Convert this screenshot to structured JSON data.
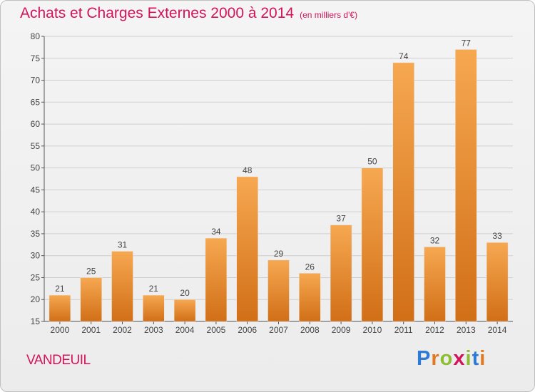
{
  "header": {
    "title": "Achats et Charges Externes 2000 à 2014",
    "unit": "(en milliers d'€)"
  },
  "commune": "VANDEUIL",
  "logo": {
    "text": "Proxiti",
    "letter_colors": [
      "#2e7bd6",
      "#e07a22",
      "#8bbf2f",
      "#d4145a",
      "#8bbf2f",
      "#2e7bd6",
      "#e07a22"
    ]
  },
  "colors": {
    "title": "#d4145a",
    "bar_light": "#f6a851",
    "bar_dark": "#d16f17",
    "grid": "#cfcfcf"
  },
  "chart_data": {
    "type": "bar",
    "title": "Achats et Charges Externes 2000 à 2014",
    "categories": [
      "2000",
      "2001",
      "2002",
      "2003",
      "2004",
      "2005",
      "2006",
      "2007",
      "2008",
      "2009",
      "2010",
      "2011",
      "2012",
      "2013",
      "2014"
    ],
    "values": [
      21,
      25,
      31,
      21,
      20,
      34,
      48,
      29,
      26,
      37,
      50,
      74,
      32,
      77,
      33
    ],
    "ylim": [
      15,
      80
    ],
    "yticks": [
      15,
      20,
      25,
      30,
      35,
      40,
      45,
      50,
      55,
      60,
      65,
      70,
      75,
      80
    ],
    "grid": true,
    "xlabel": "",
    "ylabel": ""
  }
}
